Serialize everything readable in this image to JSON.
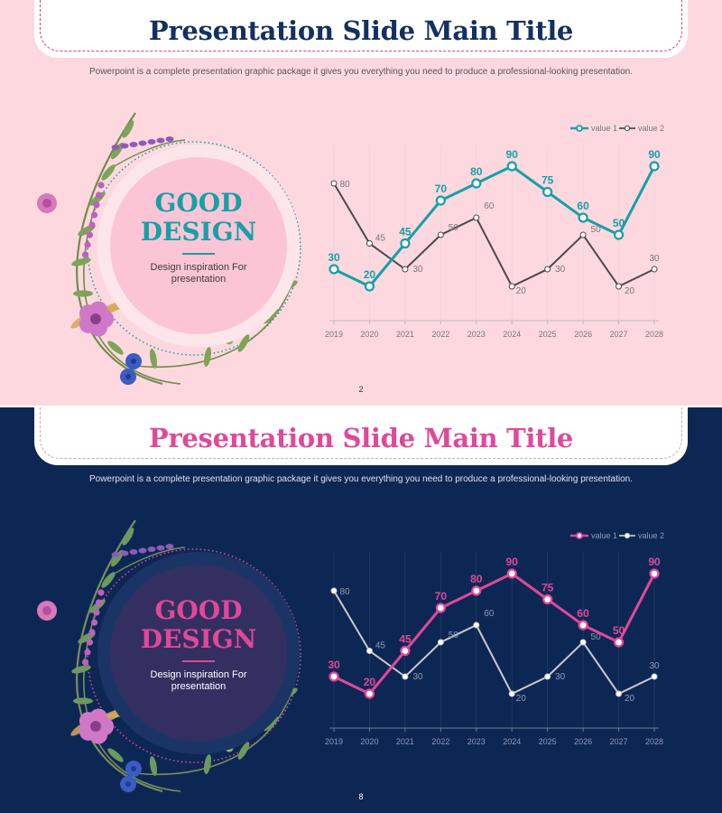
{
  "slides": [
    {
      "theme": {
        "background": "#fdd9df",
        "title_color": "#14305e",
        "subtitle_color": "#555555",
        "accent": "#16a0a7",
        "series2_color": "#4a4a4a",
        "badge_outer": "#fde6ea",
        "badge_inner": "#fbc5d6",
        "badge_title": "#16a0a7",
        "badge_text": "#3b3b3b",
        "ring": "#16a0a7",
        "axis": "#bbbbbb",
        "tick": "#777777",
        "dash_color": "#d5456b"
      },
      "title": "Presentation Slide Main Title",
      "subtitle": "Powerpoint is a complete presentation graphic package it gives you everything you need to produce a professional-looking presentation.",
      "badge": {
        "line1": "GOOD",
        "line2": "DESIGN",
        "text_line1": "Design inspiration For",
        "text_line2": "presentation"
      },
      "page_number": "2",
      "chart_data": {
        "type": "line",
        "categories": [
          "2019",
          "2020",
          "2021",
          "2022",
          "2023",
          "2024",
          "2025",
          "2026",
          "2027",
          "2028"
        ],
        "series": [
          {
            "name": "value 1",
            "values": [
              30,
              20,
              45,
              70,
              80,
              90,
              75,
              60,
              50,
              90
            ]
          },
          {
            "name": "value 2",
            "values": [
              80,
              45,
              30,
              50,
              60,
              20,
              30,
              50,
              20,
              30
            ]
          }
        ],
        "ylim": [
          0,
          100
        ],
        "legend": "top-right",
        "grid": true
      }
    },
    {
      "theme": {
        "background": "#0d2755",
        "title_color": "#e0489a",
        "subtitle_color": "#dde3ef",
        "accent": "#e0489a",
        "series2_color": "#c9c9c9",
        "badge_outer": "#1b3466",
        "badge_inner": "#342f61",
        "badge_title": "#e0489a",
        "badge_text": "#ffffff",
        "ring": "#e0489a",
        "axis": "#6b7a98",
        "tick": "#8e9ab5",
        "dash_color": "#cfa6b8"
      },
      "title": "Presentation Slide Main Title",
      "subtitle": "Powerpoint is a complete presentation graphic package it gives you everything you need to produce a professional-looking presentation.",
      "badge": {
        "line1": "GOOD",
        "line2": "DESIGN",
        "text_line1": "Design inspiration For",
        "text_line2": "presentation"
      },
      "page_number": "8",
      "chart_data": {
        "type": "line",
        "categories": [
          "2019",
          "2020",
          "2021",
          "2022",
          "2023",
          "2024",
          "2025",
          "2026",
          "2027",
          "2028"
        ],
        "series": [
          {
            "name": "value 1",
            "values": [
              30,
              20,
              45,
              70,
              80,
              90,
              75,
              60,
              50,
              90
            ]
          },
          {
            "name": "value 2",
            "values": [
              80,
              45,
              30,
              50,
              60,
              20,
              30,
              50,
              20,
              30
            ]
          }
        ],
        "ylim": [
          0,
          100
        ],
        "legend": "top-right",
        "grid": true
      }
    }
  ]
}
